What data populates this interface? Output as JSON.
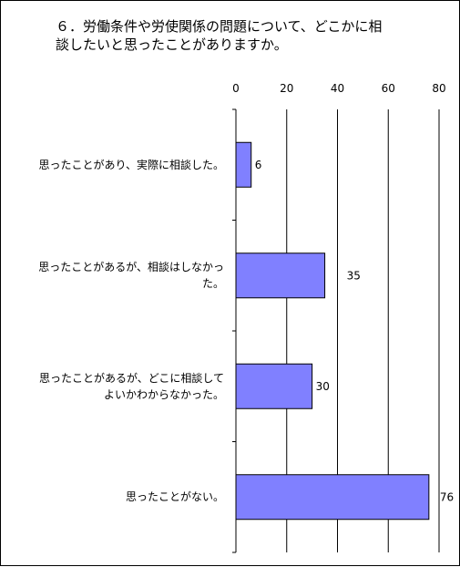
{
  "title_lines": [
    "６．労働条件や労使関係の問題について、どこかに相",
    "談したいと思ったことがありますか。"
  ],
  "chart_data": {
    "type": "bar",
    "orientation": "horizontal",
    "categories": [
      [
        "思ったことがあり、実際に相談した。"
      ],
      [
        "思ったことがあるが、相談はしなかっ",
        "た。"
      ],
      [
        "思ったことがあるが、どこに相談して",
        "よいかわからなかった。"
      ],
      [
        "思ったことがない。"
      ]
    ],
    "values": [
      6,
      35,
      30,
      76
    ],
    "value_labels": [
      "6",
      "35",
      "30",
      "76"
    ],
    "xlim": [
      0,
      80
    ],
    "xticks": [
      "0",
      "20",
      "40",
      "60",
      "80"
    ],
    "grid": true,
    "bar_color": "#8080ff",
    "legend": "none"
  }
}
